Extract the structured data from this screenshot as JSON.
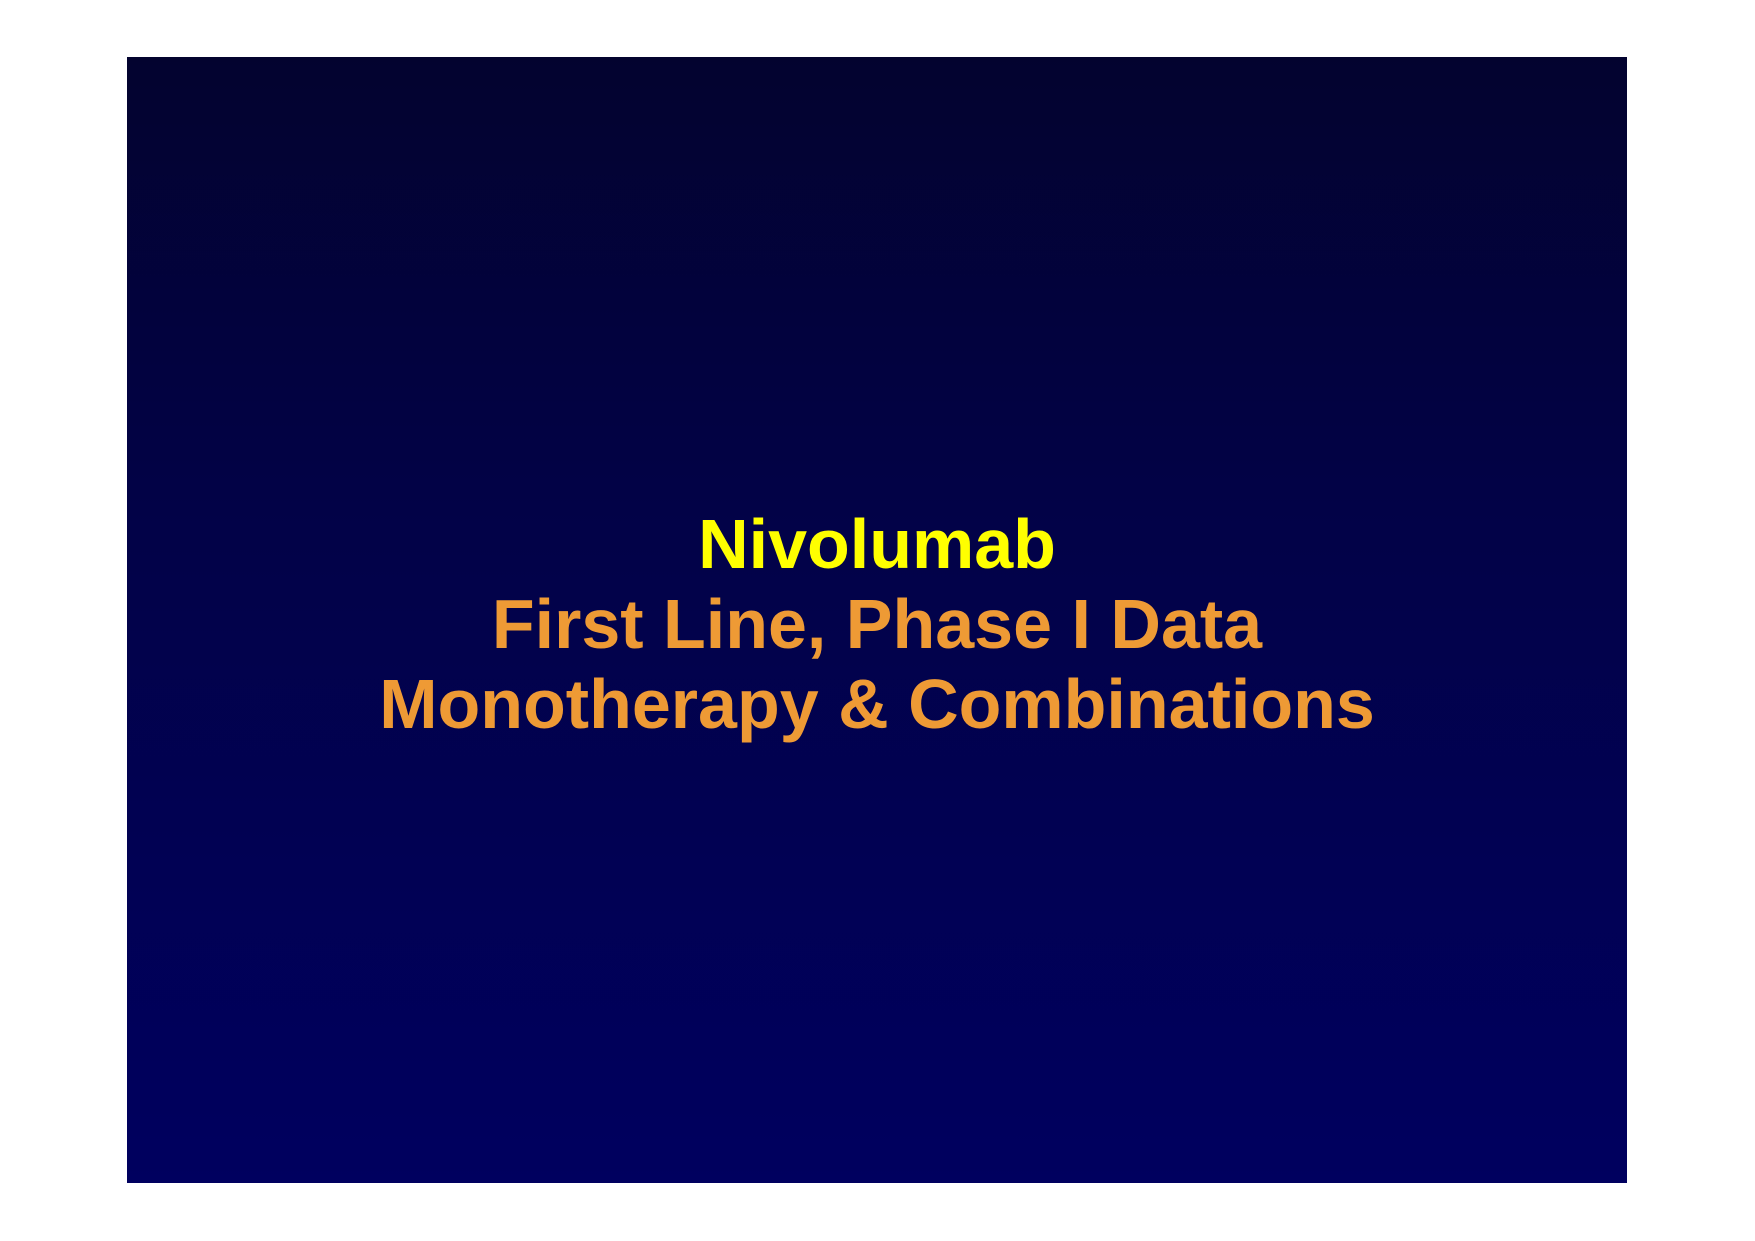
{
  "slide": {
    "title": "Nivolumab",
    "subtitle_lines": [
      "First Line,  Phase I Data",
      "Monotherapy & Combinations"
    ]
  },
  "colors": {
    "title": "#ffff00",
    "subtitle": "#ee9a35",
    "background_top": "#03032f",
    "background_bottom": "#00005f",
    "page": "#ffffff"
  }
}
